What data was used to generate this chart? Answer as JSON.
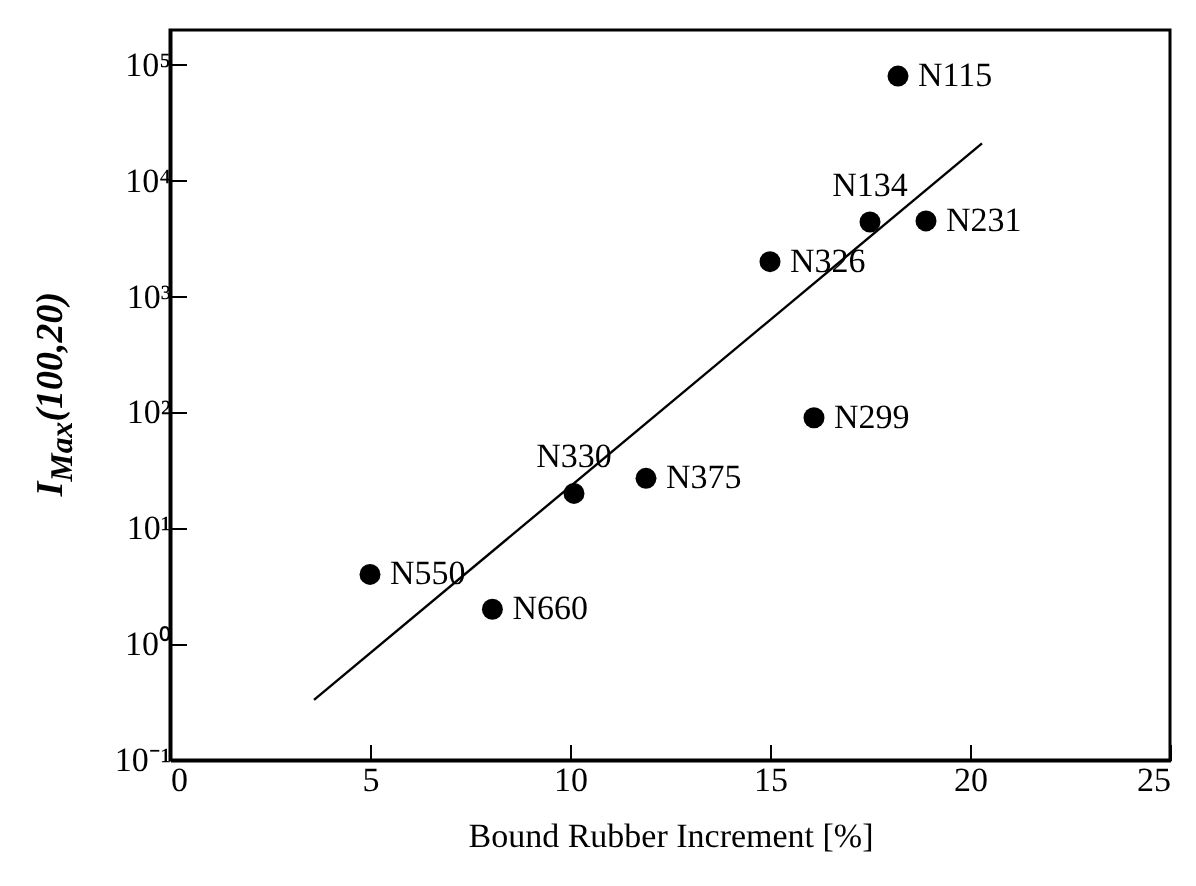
{
  "chart_data": {
    "type": "scatter",
    "xlabel": "Bound Rubber Increment [%]",
    "ylabel": "I$_{Max}$(100,20)",
    "x": [
      18.2,
      17.5,
      18.9,
      15.0,
      16.1,
      11.9,
      10.1,
      5.0,
      8.06
    ],
    "series": [
      {
        "color": "#000000",
        "marker": "circle",
        "values": [
          80000,
          4400,
          4500,
          2000,
          90,
          27,
          20,
          4,
          2
        ]
      },
      {
        "type": "line",
        "color": "#000000",
        "x": [
          3.6,
          20.3
        ],
        "values": [
          0.33,
          21000
        ]
      }
    ],
    "annotations": [
      {
        "text": "N115",
        "x": 18.2,
        "y": 80000
      },
      {
        "text": "N134",
        "x": 17.5,
        "y": 4400
      },
      {
        "text": "N231",
        "x": 18.9,
        "y": 4500
      },
      {
        "text": "N326",
        "x": 15.0,
        "y": 2000
      },
      {
        "text": "N299",
        "x": 16.1,
        "y": 90
      },
      {
        "text": "N375",
        "x": 11.9,
        "y": 27
      },
      {
        "text": "N330",
        "x": 10.1,
        "y": 20
      },
      {
        "text": "N550",
        "x": 5.0,
        "y": 4
      },
      {
        "text": "N660",
        "x": 8.06,
        "y": 2
      }
    ],
    "xlim": [
      0,
      25
    ],
    "xticks": [
      0,
      5,
      10,
      15,
      20,
      25
    ],
    "ylim": [
      0.1,
      200000
    ],
    "yticks": [
      {
        "value": 0.1,
        "label": "10⁻¹"
      },
      {
        "value": 1,
        "label": "10⁰"
      },
      {
        "value": 10,
        "label": "10¹"
      },
      {
        "value": 100,
        "label": "10²"
      },
      {
        "value": 1000,
        "label": "10³"
      },
      {
        "value": 10000,
        "label": "10⁴"
      },
      {
        "value": 100000,
        "label": "10⁵"
      }
    ],
    "log": true
  }
}
